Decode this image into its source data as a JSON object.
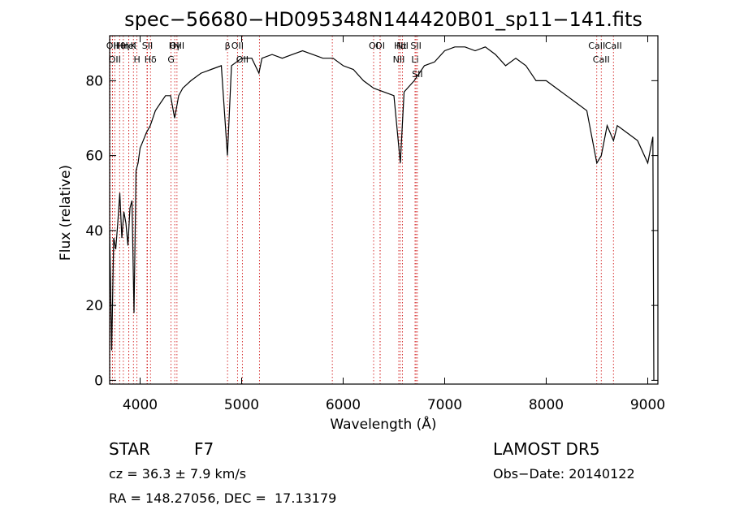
{
  "chart_data": {
    "type": "line",
    "title": "spec−56680−HD095348N144420B01_sp11−141.fits",
    "xlabel": "Wavelength (Å)",
    "ylabel": "Flux (relative)",
    "xlim": [
      3700,
      9100
    ],
    "ylim": [
      -1,
      92
    ],
    "xticks": [
      4000,
      5000,
      6000,
      7000,
      8000,
      9000
    ],
    "yticks": [
      0,
      20,
      40,
      60,
      80
    ],
    "grid": false,
    "series": [
      {
        "x": [
          3700,
          3720,
          3740,
          3760,
          3780,
          3800,
          3820,
          3840,
          3860,
          3880,
          3900,
          3920,
          3940,
          3960,
          3980,
          4000,
          4030,
          4060,
          4100,
          4150,
          4200,
          4250,
          4300,
          4340,
          4380,
          4420,
          4500,
          4600,
          4700,
          4800,
          4860,
          4900,
          5000,
          5100,
          5170,
          5200,
          5300,
          5400,
          5500,
          5600,
          5700,
          5800,
          5900,
          6000,
          6100,
          6200,
          6300,
          6400,
          6500,
          6563,
          6600,
          6700,
          6800,
          6900,
          7000,
          7100,
          7200,
          7300,
          7400,
          7500,
          7600,
          7700,
          7800,
          7900,
          8000,
          8100,
          8200,
          8300,
          8400,
          8498,
          8542,
          8600,
          8662,
          8700,
          8800,
          8900,
          9000,
          9050,
          9060
        ],
        "values": [
          40,
          8,
          38,
          35,
          42,
          50,
          38,
          45,
          42,
          36,
          46,
          48,
          18,
          56,
          58,
          62,
          64,
          66,
          68,
          72,
          74,
          76,
          76,
          70,
          76,
          78,
          80,
          82,
          83,
          84,
          60,
          84,
          86,
          86,
          82,
          86,
          87,
          86,
          87,
          88,
          87,
          86,
          86,
          84,
          83,
          80,
          78,
          77,
          76,
          58,
          77,
          80,
          84,
          85,
          88,
          89,
          89,
          88,
          89,
          87,
          84,
          86,
          84,
          80,
          80,
          78,
          76,
          74,
          72,
          58,
          60,
          68,
          64,
          68,
          66,
          64,
          58,
          65,
          0
        ]
      }
    ],
    "line_ids": [
      {
        "label": "Hθ",
        "wavelength": 3798
      },
      {
        "label": "OII",
        "wavelength": 3727
      },
      {
        "label": "OII",
        "wavelength": 3750
      },
      {
        "label": "HeI",
        "wavelength": 3889
      },
      {
        "label": "K",
        "wavelength": 3934
      },
      {
        "label": "H",
        "wavelength": 3969
      },
      {
        "label": "Hη",
        "wavelength": 3835
      },
      {
        "label": "SII",
        "wavelength": 4072
      },
      {
        "label": "Hδ",
        "wavelength": 4102
      },
      {
        "label": "OIII",
        "wavelength": 4363
      },
      {
        "label": "Hγ",
        "wavelength": 4341
      },
      {
        "label": "G",
        "wavelength": 4305
      },
      {
        "label": "OII",
        "wavelength": 4959
      },
      {
        "label": "OII",
        "wavelength": 5007
      },
      {
        "label": "β",
        "wavelength": 4861
      },
      {
        "label": "OI",
        "wavelength": 6300
      },
      {
        "label": "OI",
        "wavelength": 6364
      },
      {
        "label": "Hα",
        "wavelength": 6563
      },
      {
        "label": "SII",
        "wavelength": 6717
      },
      {
        "label": "NII",
        "wavelength": 6548
      },
      {
        "label": "Li",
        "wavelength": 6708
      },
      {
        "label": "NII",
        "wavelength": 6584
      },
      {
        "label": "SII",
        "wavelength": 6731
      },
      {
        "label": "CaII",
        "wavelength": 8498
      },
      {
        "label": "CaII",
        "wavelength": 8542
      },
      {
        "label": "CaII",
        "wavelength": 8662
      }
    ],
    "extra_marker_lines": [
      3705,
      3727,
      3889,
      4068,
      5175,
      5893,
      6364
    ],
    "colors": {
      "line": "#000000",
      "marker": "#cc0000",
      "axes": "#000000"
    }
  },
  "info": {
    "class_label": "STAR",
    "subclass": "F7",
    "survey": "LAMOST DR5",
    "cz": "cz = 36.3 ± 7.9 km/s",
    "obs_date": "Obs−Date: 20140122",
    "coords": "RA = 148.27056, DEC =  17.13179"
  }
}
